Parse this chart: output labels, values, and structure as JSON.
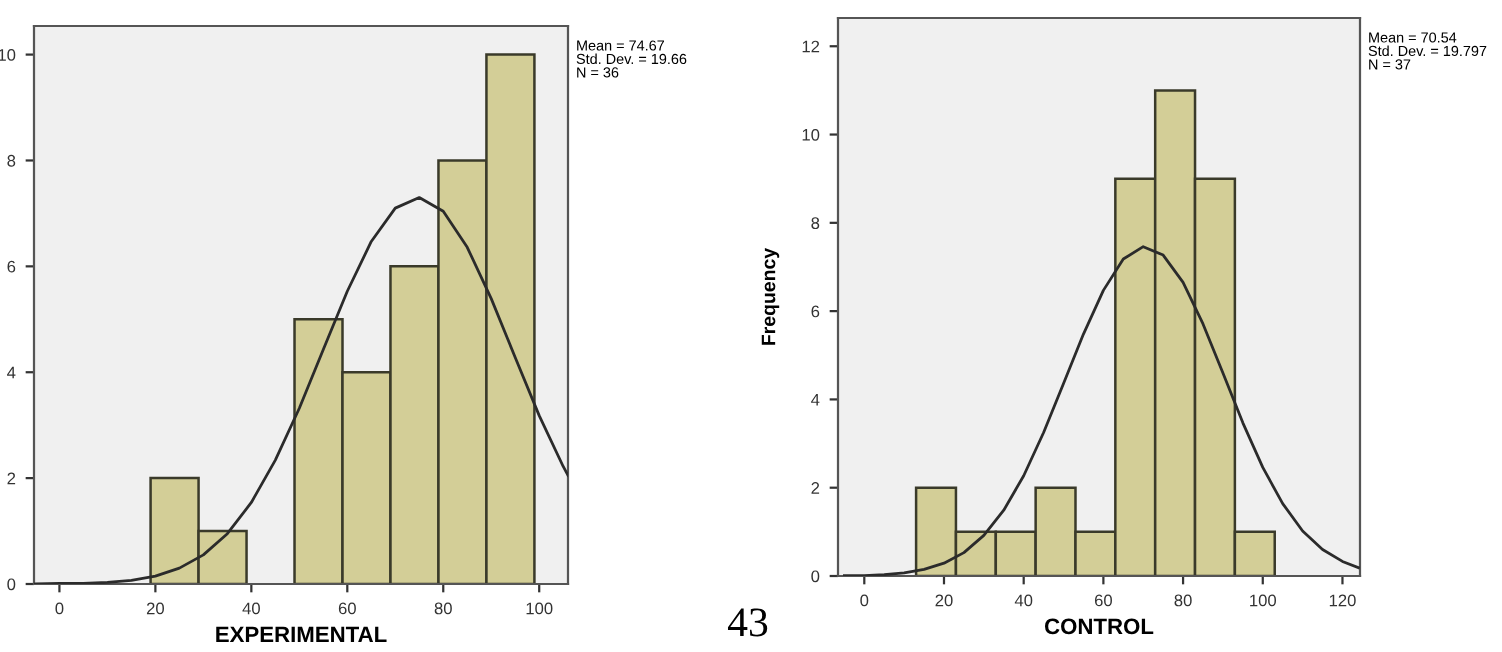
{
  "chart_data": [
    {
      "type": "histogram",
      "xlabel": "EXPERIMENTAL",
      "bins": [
        19,
        29,
        39,
        49,
        59,
        69,
        79,
        89,
        99
      ],
      "values": [
        2,
        1,
        0,
        5,
        4,
        6,
        8,
        10
      ],
      "color": "#d3ce97",
      "xlim": [
        -5.3,
        106
      ],
      "ylim": [
        0,
        10.54
      ],
      "xticks": [
        0,
        20,
        40,
        60,
        80,
        100
      ],
      "yticks": [
        0,
        2,
        4,
        6,
        8,
        10
      ],
      "grid": false,
      "legend": false,
      "series": [
        {
          "type": "line",
          "color": "#2b2b2b",
          "x": [
            -5,
            0,
            5,
            10,
            15,
            20,
            25,
            30,
            35,
            40,
            45,
            50,
            55,
            60,
            65,
            70,
            75,
            80,
            85,
            90,
            95,
            100,
            105,
            106
          ],
          "values": [
            0,
            0.01,
            0.01,
            0.03,
            0.07,
            0.15,
            0.3,
            0.55,
            0.95,
            1.54,
            2.34,
            3.32,
            4.43,
            5.53,
            6.47,
            7.1,
            7.3,
            7.04,
            6.36,
            5.39,
            4.28,
            3.18,
            2.22,
            2.05
          ]
        }
      ],
      "annotations": [
        "Mean = 74.67\nStd. Dev. = 19.66\nN = 36"
      ]
    },
    {
      "type": "histogram",
      "xlabel": "CONTROL",
      "ylabel": "Frequency",
      "bins": [
        13,
        23,
        33,
        43,
        53,
        63,
        73,
        83,
        93,
        103
      ],
      "values": [
        2,
        1,
        1,
        2,
        1,
        9,
        11,
        9,
        1
      ],
      "color": "#d3ce97",
      "xlim": [
        -6.6,
        124.4
      ],
      "ylim": [
        0,
        12.64
      ],
      "xticks": [
        0,
        20,
        40,
        60,
        80,
        100,
        120
      ],
      "yticks": [
        0,
        2,
        4,
        6,
        8,
        10,
        12
      ],
      "grid": false,
      "legend": false,
      "series": [
        {
          "type": "line",
          "color": "#2b2b2b",
          "x": [
            -5,
            0,
            5,
            10,
            15,
            20,
            25,
            30,
            35,
            40,
            45,
            50,
            55,
            60,
            65,
            70,
            75,
            80,
            85,
            90,
            95,
            100,
            105,
            110,
            115,
            120,
            124
          ],
          "values": [
            0.01,
            0.01,
            0.03,
            0.07,
            0.15,
            0.29,
            0.53,
            0.92,
            1.49,
            2.27,
            3.25,
            4.36,
            5.48,
            6.47,
            7.18,
            7.46,
            7.27,
            6.65,
            5.71,
            4.6,
            3.47,
            2.46,
            1.64,
            1.02,
            0.6,
            0.33,
            0.19
          ]
        }
      ],
      "annotations": [
        "Mean = 70.54\nStd. Dev. = 19.797\nN = 37",
        "43"
      ]
    }
  ]
}
